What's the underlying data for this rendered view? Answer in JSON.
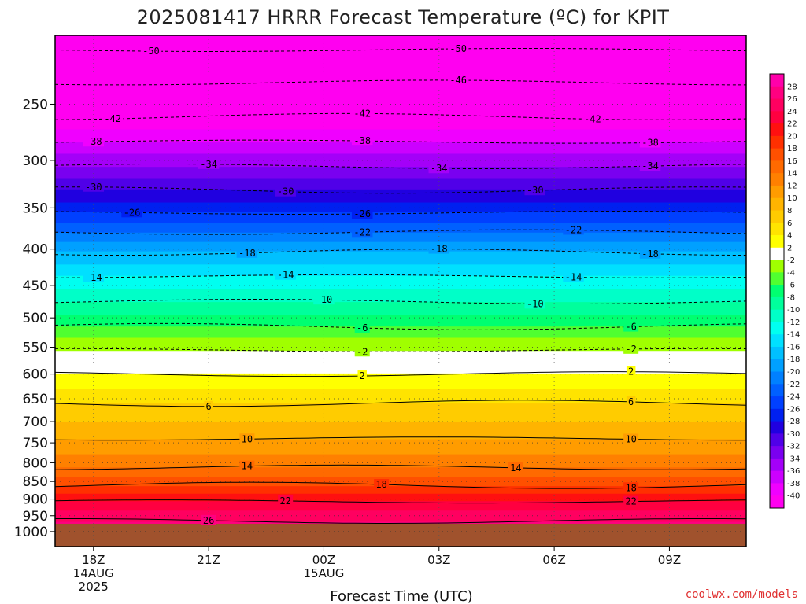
{
  "title": "2025081417 HRRR Forecast Temperature (ºC) for KPIT",
  "watermark": "coolwx.com/models",
  "chart_data": {
    "type": "heatmap",
    "title": "2025081417 HRRR Forecast Temperature (ºC) for KPIT",
    "xlabel": "Forecast Time (UTC)",
    "ylabel": "",
    "y_axis": "pressure (hPa), log scale, reversed (1000 at bottom)",
    "xlim_hours_after_18Z": [
      -1,
      17
    ],
    "ylim_hpa": [
      1050,
      200
    ],
    "x_ticks": [
      {
        "hours": 0,
        "lines": [
          "18Z",
          "14AUG",
          "2025"
        ]
      },
      {
        "hours": 3,
        "lines": [
          "21Z"
        ]
      },
      {
        "hours": 6,
        "lines": [
          "00Z",
          "15AUG"
        ]
      },
      {
        "hours": 9,
        "lines": [
          "03Z"
        ]
      },
      {
        "hours": 12,
        "lines": [
          "06Z"
        ]
      },
      {
        "hours": 15,
        "lines": [
          "09Z"
        ]
      }
    ],
    "y_ticks": [
      250,
      300,
      350,
      400,
      450,
      500,
      550,
      600,
      650,
      700,
      750,
      800,
      850,
      900,
      950,
      1000
    ],
    "grid": true,
    "surface_pressure_hpa": 975,
    "profile": [
      {
        "p": 200,
        "t": -52
      },
      {
        "p": 225,
        "t": -47
      },
      {
        "p": 250,
        "t": -44
      },
      {
        "p": 300,
        "t": -35
      },
      {
        "p": 350,
        "t": -27
      },
      {
        "p": 400,
        "t": -18.5
      },
      {
        "p": 450,
        "t": -12.5
      },
      {
        "p": 500,
        "t": -7.5
      },
      {
        "p": 550,
        "t": -2.5
      },
      {
        "p": 600,
        "t": 2
      },
      {
        "p": 650,
        "t": 5.5
      },
      {
        "p": 700,
        "t": 8
      },
      {
        "p": 750,
        "t": 10.5
      },
      {
        "p": 800,
        "t": 13
      },
      {
        "p": 850,
        "t": 17
      },
      {
        "p": 900,
        "t": 21.5
      },
      {
        "p": 950,
        "t": 25
      },
      {
        "p": 1000,
        "t": 28
      }
    ],
    "contours": [
      {
        "value": -50,
        "labels_at_hours": [
          1.5,
          9.5
        ]
      },
      {
        "value": -46,
        "labels_at_hours": [
          9.5
        ]
      },
      {
        "value": -42,
        "labels_at_hours": [
          0.5,
          7,
          13
        ]
      },
      {
        "value": -38,
        "labels_at_hours": [
          0,
          7,
          14.5
        ]
      },
      {
        "value": -34,
        "labels_at_hours": [
          3,
          9,
          14.5
        ]
      },
      {
        "value": -30,
        "labels_at_hours": [
          0,
          5,
          11.5
        ]
      },
      {
        "value": -26,
        "labels_at_hours": [
          1,
          7
        ]
      },
      {
        "value": -22,
        "labels_at_hours": [
          7,
          12.5
        ]
      },
      {
        "value": -18,
        "labels_at_hours": [
          4,
          9,
          14.5
        ]
      },
      {
        "value": -14,
        "labels_at_hours": [
          0,
          5,
          12.5
        ]
      },
      {
        "value": -10,
        "labels_at_hours": [
          6,
          11.5
        ]
      },
      {
        "value": -6,
        "labels_at_hours": [
          7,
          14
        ]
      },
      {
        "value": -2,
        "labels_at_hours": [
          7,
          14
        ]
      },
      {
        "value": 2,
        "labels_at_hours": [
          7,
          14
        ]
      },
      {
        "value": 6,
        "labels_at_hours": [
          3,
          14
        ]
      },
      {
        "value": 10,
        "labels_at_hours": [
          4,
          14
        ]
      },
      {
        "value": 14,
        "labels_at_hours": [
          4,
          11
        ]
      },
      {
        "value": 18,
        "labels_at_hours": [
          7.5,
          14
        ]
      },
      {
        "value": 22,
        "labels_at_hours": [
          5,
          14
        ]
      },
      {
        "value": 26,
        "labels_at_hours": [
          3
        ]
      }
    ],
    "colorbar": {
      "labels": [
        28,
        26,
        24,
        22,
        20,
        18,
        16,
        14,
        12,
        10,
        8,
        6,
        4,
        2,
        -2,
        -4,
        -6,
        -8,
        -10,
        -12,
        -14,
        -16,
        -18,
        -20,
        -22,
        -24,
        -26,
        -28,
        -30,
        -32,
        -34,
        -36,
        -38,
        -40
      ],
      "colors": [
        "#ff00aa",
        "#ff0080",
        "#ff0060",
        "#ff0040",
        "#ff1010",
        "#ff3000",
        "#ff5000",
        "#ff6a00",
        "#ff8000",
        "#ff9c00",
        "#ffb400",
        "#ffcc00",
        "#ffe400",
        "#ffff00",
        "#ffffff",
        "#a0ff00",
        "#50ff30",
        "#00ff70",
        "#00ff9c",
        "#00ffc8",
        "#00fff0",
        "#00e0ff",
        "#00c0ff",
        "#00a0ff",
        "#0080ff",
        "#0060ff",
        "#0040ff",
        "#0020f0",
        "#2000e0",
        "#5000e8",
        "#7a00f0",
        "#a400f8",
        "#cc00ff",
        "#f000ff",
        "#ff00f0"
      ]
    }
  }
}
